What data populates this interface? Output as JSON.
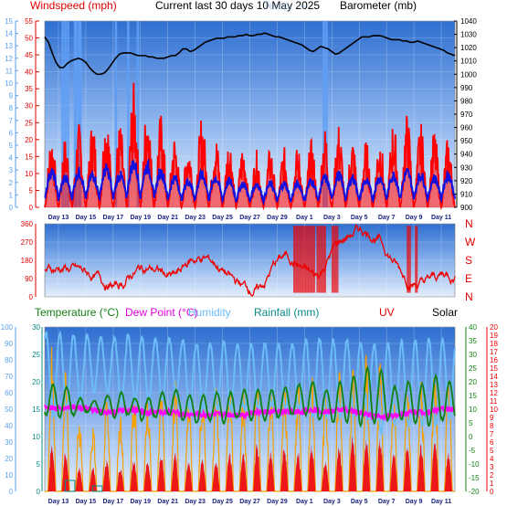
{
  "header": {
    "windspeed_label": "Windspeed (mph)",
    "title": "Current last 30 days 10 May 2025",
    "overlap_text": "Temp. ---",
    "barometer_label": "Barometer (mb)"
  },
  "legend2": {
    "temperature": "Temperature (°C)",
    "dewpoint": "Dew Point (°C)",
    "humidity": "Humidity",
    "rainfall": "Rainfall (mm)",
    "uv": "UV",
    "solar": "Solar"
  },
  "colors": {
    "panel_top": "#2f6fd0",
    "panel_bottom": "#dfeafa",
    "gust": "#ff0000",
    "wind": "#1010e0",
    "pressure": "#000000",
    "rain_bars": "#5f9ff5",
    "direction": "#ee0000",
    "temperature": "#138013",
    "dewpoint": "#ff00ff",
    "humidity": "#6cbcf8",
    "solar": "#f5a000",
    "uv": "#ee0000",
    "left_axis": "#e00000",
    "blue_axis": "#5aa0e8"
  },
  "date_labels": [
    "Day 13",
    "Day 15",
    "Day 17",
    "Day 19",
    "Day 21",
    "Day 23",
    "Day 25",
    "Day 27",
    "Day 29",
    "Day 1",
    "Day 3",
    "Day 5",
    "Day 7",
    "Day 9",
    "Day 11"
  ],
  "chart_data": [
    {
      "type": "line",
      "name": "wind-barometer",
      "left_axis": {
        "label": "Windspeed (mph)",
        "ylim": [
          0,
          55
        ],
        "ticks": [
          "0",
          "5",
          "10",
          "15",
          "20",
          "25",
          "30",
          "35",
          "40",
          "45",
          "50",
          "55"
        ]
      },
      "left_axis_2": {
        "ylim": [
          0,
          15
        ],
        "ticks": [
          "0",
          "1",
          "2",
          "3",
          "4",
          "5",
          "6",
          "7",
          "8",
          "9",
          "10",
          "11",
          "12",
          "13",
          "14",
          "15"
        ]
      },
      "right_axis": {
        "label": "Barometer (mb)",
        "ylim": [
          900,
          1040
        ],
        "ticks": [
          "900",
          "910",
          "920",
          "930",
          "940",
          "950",
          "960",
          "970",
          "980",
          "990",
          "1000",
          "1010",
          "1020",
          "1030",
          "1040"
        ]
      },
      "x_days": 30,
      "pressure": [
        1028,
        1024,
        1016,
        1009,
        1005,
        1005,
        1008,
        1010,
        1011,
        1012,
        1011,
        1009,
        1005,
        1002,
        1000,
        1000,
        1001,
        1004,
        1008,
        1012,
        1015,
        1016,
        1016,
        1016,
        1015,
        1014,
        1014,
        1014,
        1013,
        1013,
        1012,
        1012,
        1012,
        1013,
        1014,
        1014,
        1016,
        1019,
        1019,
        1017,
        1018,
        1020,
        1022,
        1024,
        1025,
        1026,
        1027,
        1027,
        1027,
        1028,
        1028,
        1028,
        1029,
        1029,
        1030,
        1029,
        1029,
        1030,
        1030,
        1031,
        1030,
        1029,
        1028,
        1028,
        1027,
        1026,
        1025,
        1024,
        1023,
        1022,
        1020,
        1018,
        1017,
        1019,
        1021,
        1020,
        1019,
        1017,
        1015,
        1016,
        1018,
        1020,
        1022,
        1024,
        1026,
        1028,
        1028,
        1028,
        1029,
        1029,
        1029,
        1028,
        1027,
        1026,
        1026,
        1026,
        1025,
        1025,
        1024,
        1024,
        1025,
        1024,
        1023,
        1022,
        1021,
        1020,
        1019,
        1018,
        1016,
        1015,
        1014
      ],
      "gust_peaks": [
        22,
        21,
        25,
        26,
        29,
        25,
        37,
        32,
        28,
        22,
        20,
        28,
        22,
        21,
        19,
        17,
        18,
        18,
        18,
        20,
        24,
        25,
        21,
        20,
        22,
        26,
        28,
        25,
        23,
        21
      ],
      "wind_peaks": [
        12,
        10,
        12,
        11,
        13,
        11,
        15,
        14,
        12,
        10,
        9,
        11,
        10,
        9,
        8,
        8,
        8,
        8,
        8,
        9,
        10,
        11,
        10,
        9,
        10,
        11,
        12,
        11,
        10,
        11
      ],
      "rain_bar_days": [
        1.3,
        1.5,
        1.7,
        2.2,
        2.3,
        2.5,
        2.6,
        5.2,
        6.1,
        6.8,
        20.4,
        20.6
      ]
    },
    {
      "type": "line",
      "name": "wind-direction",
      "left_axis": {
        "ylim": [
          0,
          360
        ],
        "ticks": [
          "0",
          "90",
          "180",
          "270",
          "360"
        ]
      },
      "right_axis": {
        "ticks": [
          "N",
          "E",
          "S",
          "W",
          "N"
        ]
      }
    },
    {
      "type": "line",
      "name": "temperature-humidity-solar",
      "left_axis": {
        "label": "Humidity",
        "ylim": [
          0,
          100
        ],
        "ticks": [
          "0",
          "10",
          "20",
          "30",
          "40",
          "50",
          "60",
          "70",
          "80",
          "90",
          "100"
        ]
      },
      "left_axis_2": {
        "ylim": [
          0,
          30
        ],
        "ticks": [
          "0",
          "5",
          "10",
          "15",
          "20",
          "25",
          "30"
        ]
      },
      "right_axis": {
        "label": "Temperature (°C)",
        "ylim": [
          -20,
          40
        ],
        "ticks": [
          "-20",
          "-15",
          "-10",
          "-5",
          "0",
          "5",
          "10",
          "15",
          "20",
          "25",
          "30",
          "35",
          "40"
        ]
      },
      "right_axis_2": {
        "label": "UV",
        "ylim": [
          0,
          20
        ],
        "ticks": [
          "0",
          "1",
          "2",
          "3",
          "4",
          "5",
          "6",
          "7",
          "8",
          "9",
          "10",
          "11",
          "12",
          "13",
          "14",
          "15",
          "16",
          "17",
          "18",
          "19",
          "20"
        ]
      },
      "temp_max": [
        19,
        18,
        14,
        13,
        15,
        16,
        14,
        14,
        16,
        17,
        15,
        15,
        16,
        16,
        17,
        17,
        17,
        18,
        19,
        20,
        17,
        20,
        22,
        25,
        24,
        18,
        20,
        19,
        22,
        20
      ],
      "temp_min": [
        8,
        7,
        8,
        9,
        8,
        7,
        8,
        6,
        7,
        8,
        6,
        5,
        6,
        5,
        7,
        6,
        6,
        7,
        8,
        8,
        6,
        5,
        5,
        4,
        5,
        6,
        6,
        5,
        4,
        6
      ],
      "dew_point": [
        11,
        10,
        11,
        10,
        9,
        9,
        10,
        9,
        9,
        9,
        8,
        8,
        8,
        8,
        8,
        9,
        9,
        9,
        9,
        10,
        9,
        10,
        9,
        8,
        7,
        8,
        9,
        9,
        10,
        10
      ],
      "humidity_max": [
        97,
        96,
        95,
        95,
        94,
        93,
        95,
        94,
        93,
        93,
        92,
        90,
        90,
        91,
        90,
        90,
        90,
        90,
        90,
        92,
        93,
        92,
        92,
        91,
        90,
        90,
        91,
        92,
        93,
        92
      ],
      "humidity_min": [
        45,
        50,
        55,
        60,
        60,
        55,
        55,
        55,
        55,
        60,
        50,
        50,
        50,
        50,
        50,
        50,
        52,
        50,
        50,
        45,
        45,
        45,
        45,
        45,
        35,
        40,
        40,
        40,
        40,
        45
      ],
      "uv_peaks": [
        6,
        5,
        3,
        3,
        4,
        3,
        4,
        4,
        5,
        5,
        4,
        4,
        4,
        5,
        5,
        6,
        5,
        6,
        5,
        6,
        4,
        6,
        7,
        7,
        7,
        5,
        6,
        6,
        7,
        5
      ],
      "solar_peaks": [
        90,
        80,
        45,
        40,
        55,
        50,
        60,
        60,
        70,
        70,
        60,
        65,
        65,
        70,
        65,
        70,
        65,
        70,
        70,
        75,
        60,
        75,
        80,
        85,
        80,
        60,
        70,
        70,
        80,
        70
      ],
      "rain_mm": [
        0,
        2,
        0,
        1,
        0,
        0,
        0,
        0,
        0,
        0,
        0,
        0,
        0,
        0,
        0,
        0,
        0,
        0,
        0,
        0,
        0,
        0,
        0,
        0,
        0,
        0,
        0,
        0,
        0,
        0
      ]
    }
  ]
}
